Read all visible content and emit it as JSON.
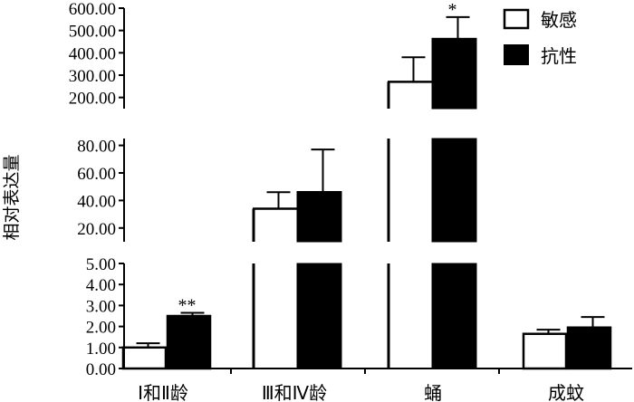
{
  "chart_data": {
    "type": "bar",
    "title": "",
    "xlabel": "",
    "ylabel": "相对表达量",
    "categories": [
      "Ⅰ和Ⅱ龄",
      "Ⅲ和Ⅳ龄",
      "蛹",
      "成蚊"
    ],
    "series": [
      {
        "name": "敏感",
        "fill": "#ffffff",
        "values": [
          1.0,
          34.0,
          270.0,
          1.65
        ],
        "errors": [
          0.2,
          12.0,
          110.0,
          0.2
        ]
      },
      {
        "name": "抗性",
        "fill": "#000000",
        "values": [
          2.5,
          46.5,
          465.0,
          1.95
        ],
        "errors": [
          0.15,
          30.5,
          95.0,
          0.5
        ]
      }
    ],
    "axis_segments": [
      {
        "ylim": [
          0,
          5
        ],
        "ticks": [
          "0.00",
          "1.00",
          "2.00",
          "3.00",
          "4.00",
          "5.00"
        ]
      },
      {
        "ylim": [
          10,
          85
        ],
        "ticks": [
          "20.00",
          "40.00",
          "60.00",
          "80.00"
        ]
      },
      {
        "ylim": [
          150,
          600
        ],
        "ticks": [
          "200.00",
          "300.00",
          "400.00",
          "500.00",
          "600.00"
        ]
      }
    ],
    "annotations": [
      {
        "category": "Ⅰ和Ⅱ龄",
        "text": "**"
      },
      {
        "category": "蛹",
        "text": "*"
      }
    ],
    "legend_position": "top-right",
    "grid": false
  }
}
